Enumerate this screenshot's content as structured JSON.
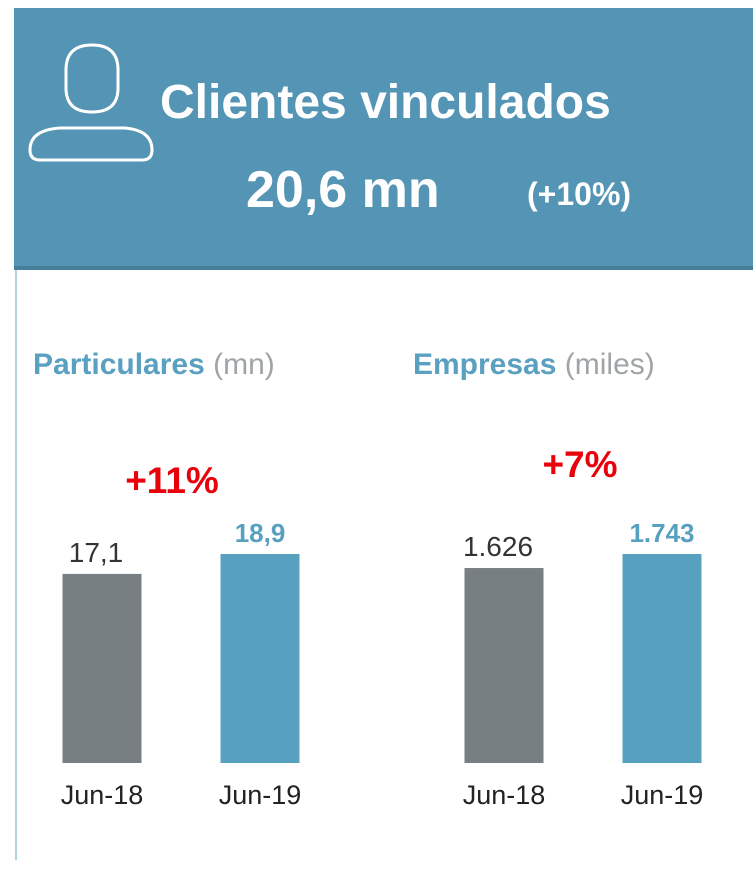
{
  "header": {
    "title": "Clientes vinculados",
    "value": "20,6 mn",
    "change": "(+10%)"
  },
  "chart_data": [
    {
      "type": "bar",
      "title": "Particulares",
      "unit": "(mn)",
      "annotation": "+11%",
      "categories": [
        "Jun-18",
        "Jun-19"
      ],
      "values": [
        17.1,
        18.9
      ],
      "value_labels": [
        "17,1",
        "18,9"
      ],
      "colors": [
        "#787f82",
        "#57a0c0"
      ]
    },
    {
      "type": "bar",
      "title": "Empresas",
      "unit": "(miles)",
      "annotation": "+7%",
      "categories": [
        "Jun-18",
        "Jun-19"
      ],
      "values": [
        1626,
        1743
      ],
      "value_labels": [
        "1.626",
        "1.743"
      ],
      "colors": [
        "#787f82",
        "#57a0c0"
      ]
    }
  ]
}
